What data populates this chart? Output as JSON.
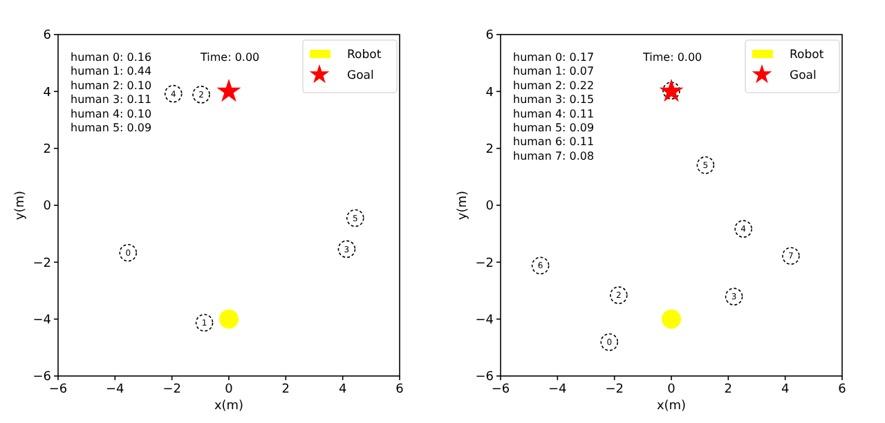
{
  "chart_data": [
    {
      "type": "scatter",
      "xlabel": "x(m)",
      "ylabel": "y(m)",
      "xlim": [
        -6,
        6
      ],
      "ylim": [
        -6,
        6
      ],
      "xticks": [
        -6,
        -4,
        -2,
        0,
        2,
        4,
        6
      ],
      "yticks": [
        -6,
        -4,
        -2,
        0,
        2,
        4,
        6
      ],
      "grid": false,
      "legend": "top right",
      "annotations": [
        "human 0: 0.16",
        "human 1: 0.44",
        "human 2: 0.10",
        "human 3: 0.11",
        "human 4: 0.10",
        "human 5: 0.09",
        "Time: 0.00",
        {
          "text": "0",
          "x": -3.54,
          "y": -1.67
        },
        {
          "text": "1",
          "x": -0.86,
          "y": -4.13
        },
        {
          "text": "2",
          "x": -0.97,
          "y": 3.89
        },
        {
          "text": "3",
          "x": 4.14,
          "y": -1.54
        },
        {
          "text": "4",
          "x": -1.95,
          "y": 3.92
        },
        {
          "text": "5",
          "x": 4.44,
          "y": -0.45
        }
      ],
      "series": [
        {
          "color": "#000000",
          "marker": "circle",
          "line_style": "dashed",
          "x": [
            -3.54,
            -0.86,
            -0.97,
            4.14,
            -1.95,
            4.44
          ],
          "values": [
            -1.67,
            -4.13,
            3.89,
            -1.54,
            3.92,
            -0.45
          ]
        },
        {
          "name": "Robot",
          "color": "#ffff00",
          "marker": "circle",
          "x": [
            0
          ],
          "values": [
            -4
          ]
        },
        {
          "name": "Goal",
          "color": "#ff0000",
          "marker": "star",
          "x": [
            0
          ],
          "values": [
            4
          ]
        }
      ]
    },
    {
      "type": "scatter",
      "xlabel": "x(m)",
      "ylabel": "y(m)",
      "xlim": [
        -6,
        6
      ],
      "ylim": [
        -6,
        6
      ],
      "xticks": [
        -6,
        -4,
        -2,
        0,
        2,
        4,
        6
      ],
      "yticks": [
        -6,
        -4,
        -2,
        0,
        2,
        4,
        6
      ],
      "grid": false,
      "legend": "top right",
      "annotations": [
        "human 0: 0.17",
        "human 1: 0.07",
        "human 2: 0.22",
        "human 3: 0.15",
        "human 4: 0.11",
        "human 5: 0.09",
        "human 6: 0.11",
        "human 7: 0.08",
        "Time: 0.00",
        {
          "text": "0",
          "x": -2.18,
          "y": -4.81
        },
        {
          "text": "2",
          "x": -1.85,
          "y": -3.16
        },
        {
          "text": "3",
          "x": 2.2,
          "y": -3.21
        },
        {
          "text": "4",
          "x": 2.53,
          "y": -0.83
        },
        {
          "text": "5",
          "x": 1.2,
          "y": 1.41
        },
        {
          "text": "6",
          "x": -4.6,
          "y": -2.12
        },
        {
          "text": "7",
          "x": 4.2,
          "y": -1.78
        }
      ],
      "series": [
        {
          "color": "#000000",
          "marker": "circle",
          "line_style": "dashed",
          "x": [
            -2.18,
            0,
            -1.85,
            2.2,
            2.53,
            1.2,
            -4.6,
            4.2
          ],
          "values": [
            -4.81,
            4.03,
            -3.16,
            -3.21,
            -0.83,
            1.41,
            -2.12,
            -1.78
          ]
        },
        {
          "name": "Robot",
          "color": "#ffff00",
          "marker": "circle",
          "x": [
            0
          ],
          "values": [
            -4
          ]
        },
        {
          "name": "Goal",
          "color": "#ff0000",
          "marker": "star",
          "x": [
            0
          ],
          "values": [
            4
          ]
        }
      ]
    }
  ]
}
